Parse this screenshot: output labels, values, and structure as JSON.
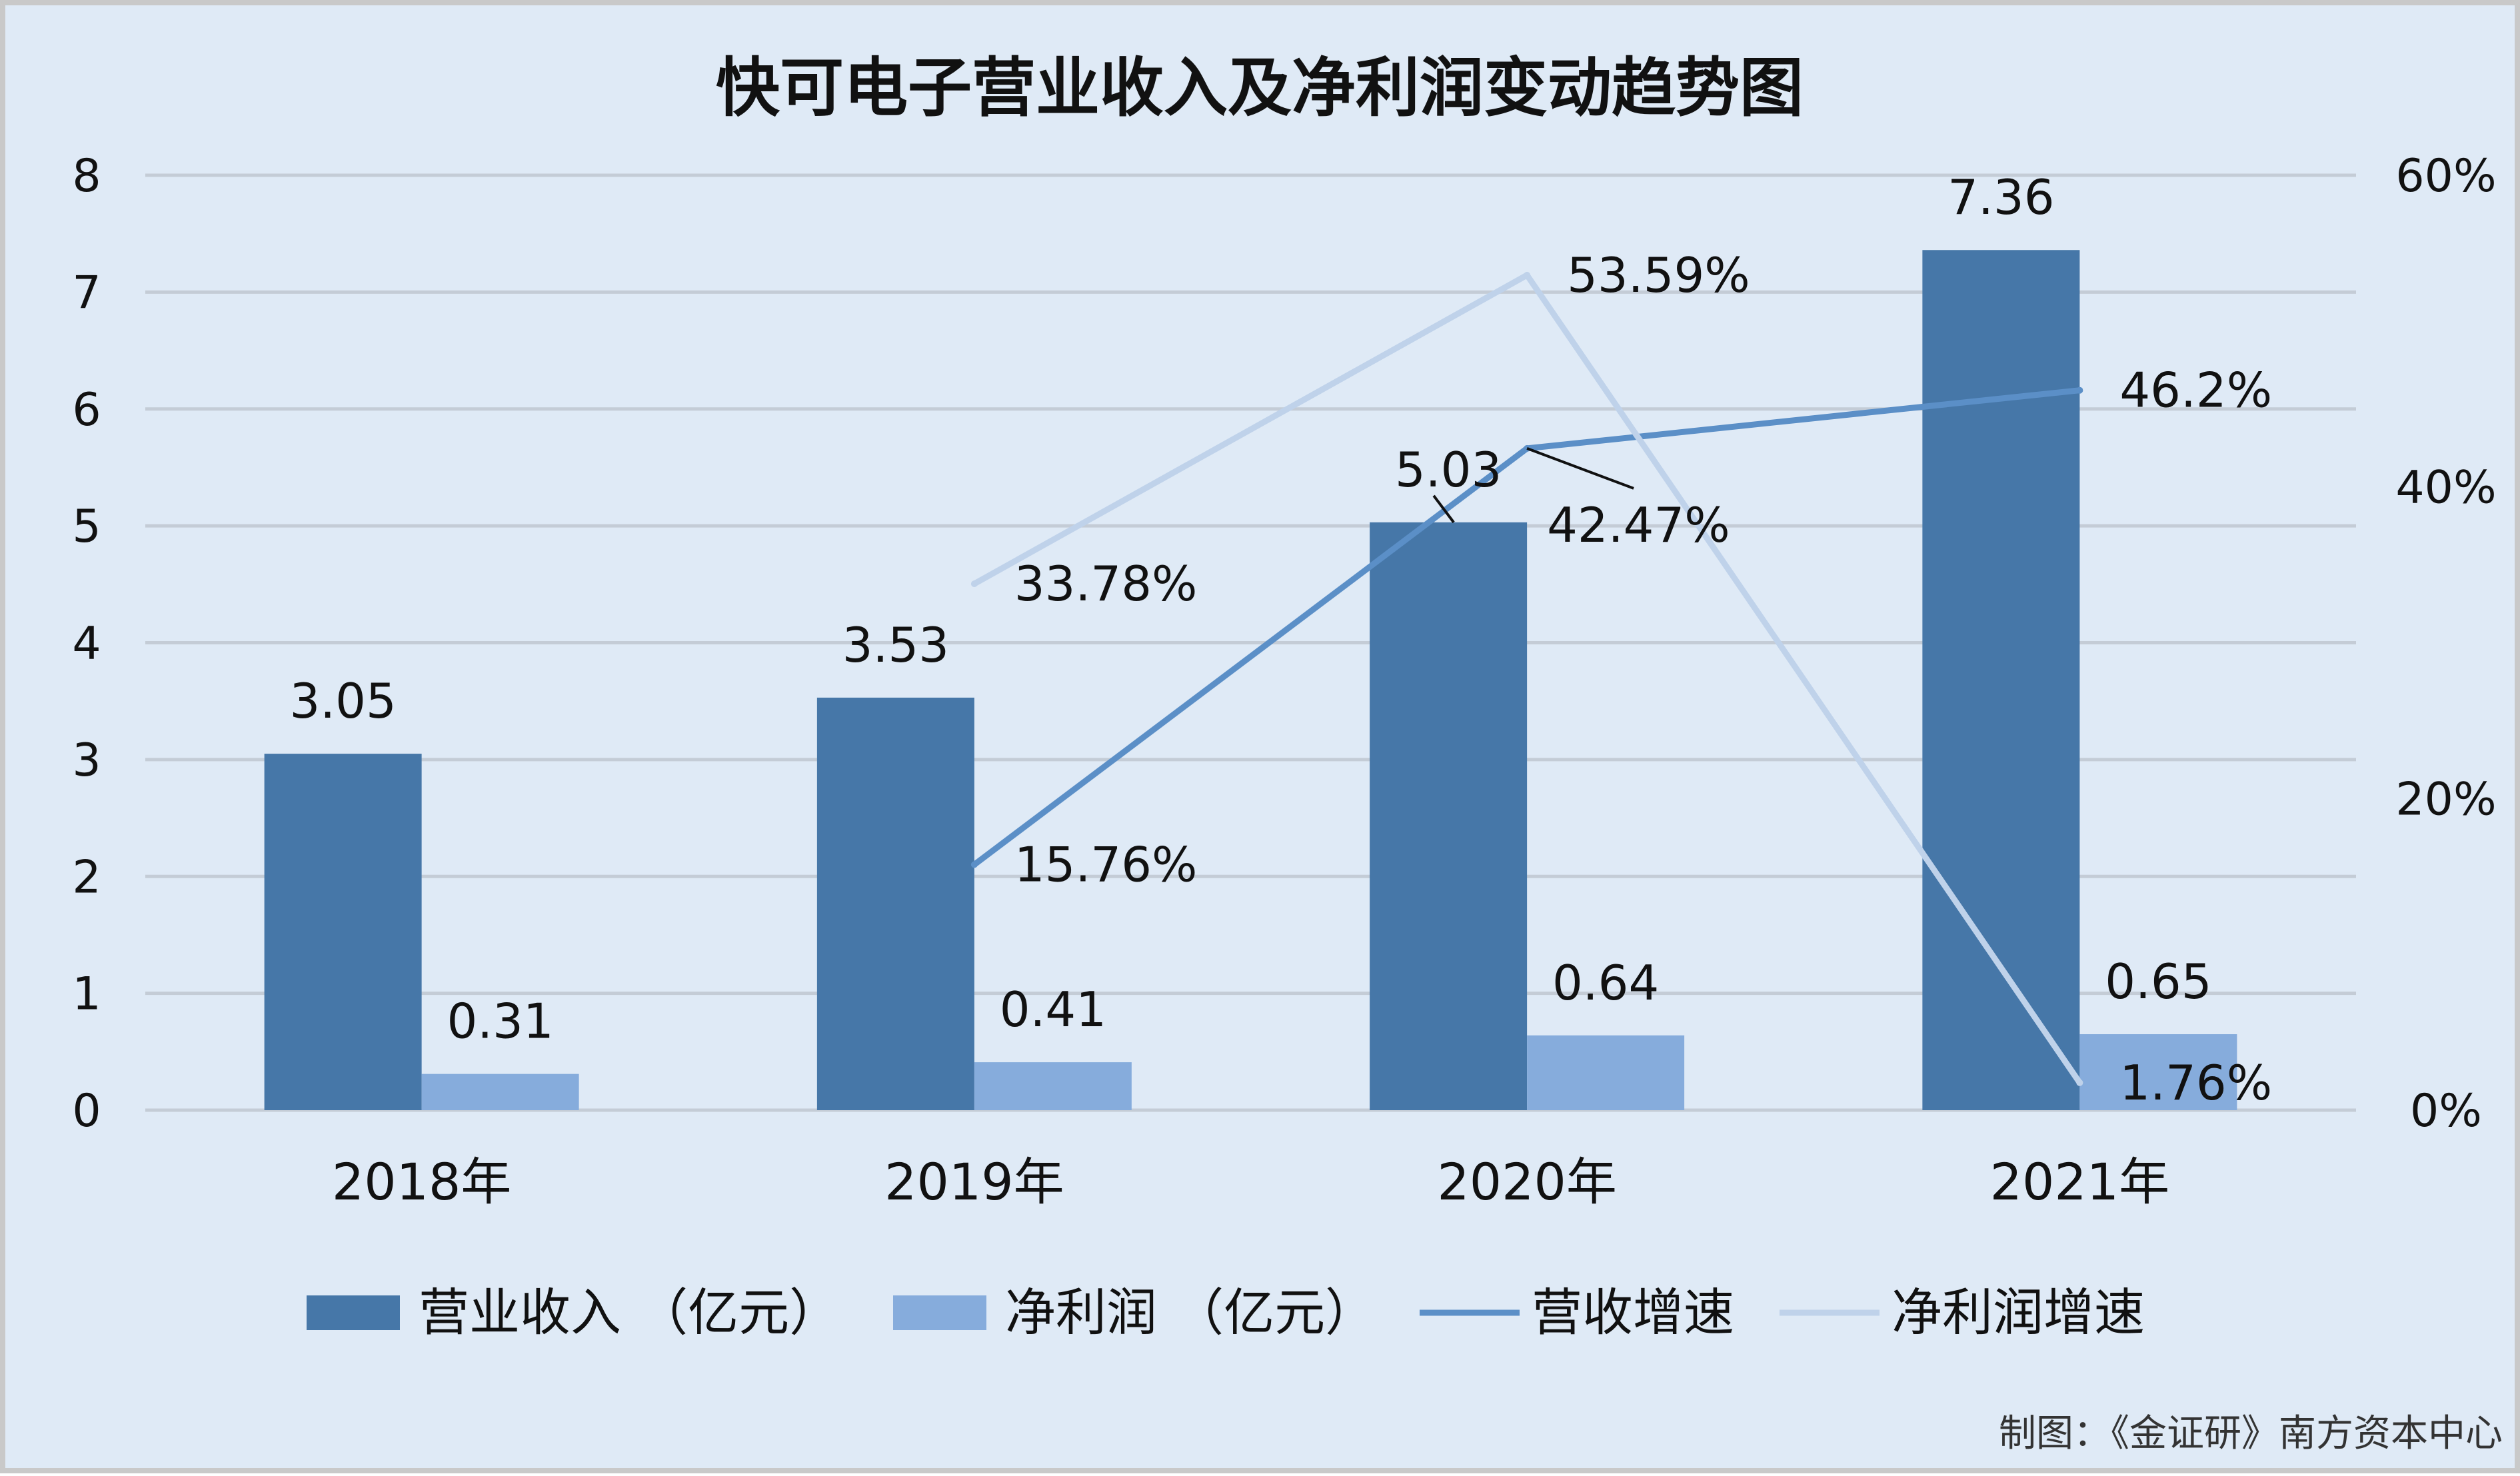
{
  "chart_data": {
    "type": "bar",
    "title": "快可电子营业收入及净利润变动趋势图",
    "categories": [
      "2018年",
      "2019年",
      "2020年",
      "2021年"
    ],
    "ylim": [
      0,
      8
    ],
    "y_ticks": [
      "0",
      "1",
      "2",
      "3",
      "4",
      "5",
      "6",
      "7",
      "8"
    ],
    "y2lim": [
      0,
      60
    ],
    "y2_ticks": [
      "0%",
      "20%",
      "40%",
      "60%"
    ],
    "grid": true,
    "legend_position": "bottom",
    "bar_series": [
      {
        "name": "营业收入（亿元）",
        "legend_label": "营业收入 （亿元）",
        "color": "#4677a8",
        "values": [
          3.05,
          3.53,
          5.03,
          7.36
        ],
        "labels": [
          "3.05",
          "3.53",
          "5.03",
          "7.36"
        ]
      },
      {
        "name": "净利润（亿元）",
        "legend_label": "净利润 （亿元）",
        "color": "#86acdc",
        "values": [
          0.31,
          0.41,
          0.64,
          0.65
        ],
        "labels": [
          "0.31",
          "0.41",
          "0.64",
          "0.65"
        ]
      }
    ],
    "line_series": [
      {
        "name": "营收增速",
        "color": "#5b8fc7",
        "values": [
          null,
          15.76,
          42.47,
          46.2
        ],
        "labels": [
          null,
          "15.76%",
          "42.47%",
          "46.2%"
        ]
      },
      {
        "name": "净利润增速",
        "color": "#bfd2ea",
        "values": [
          null,
          33.78,
          53.59,
          1.76
        ],
        "labels": [
          null,
          "33.78%",
          "53.59%",
          "1.76%"
        ]
      }
    ],
    "source": "制图：《金证研》南方资本中心"
  },
  "colors": {
    "background": "#dfeaf6",
    "grid": "#c4ccd6",
    "border": "#c9c9c9",
    "text": "#111111"
  }
}
